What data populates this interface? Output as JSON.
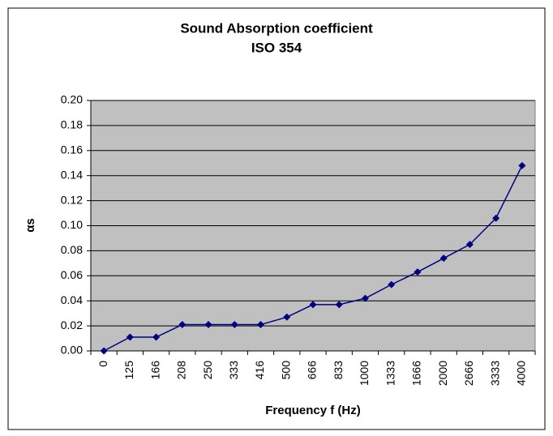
{
  "chart_data": {
    "type": "line",
    "title": "Sound Absorption coefficient",
    "subtitle": "ISO 354",
    "xlabel": "Frequency f (Hz)",
    "ylabel": "αs",
    "categories": [
      "0",
      "125",
      "166",
      "208",
      "250",
      "333",
      "416",
      "500",
      "666",
      "833",
      "1000",
      "1333",
      "1666",
      "2000",
      "2666",
      "3333",
      "4000"
    ],
    "series": [
      {
        "color": "#000080",
        "values": [
          0,
          0.011,
          0.011,
          0.021,
          0.021,
          0.021,
          0.021,
          0.027,
          0.037,
          0.037,
          0.042,
          0.053,
          0.063,
          0.074,
          0.085,
          0.106,
          0.148
        ]
      }
    ],
    "ylim": [
      0,
      0.2
    ],
    "yticks": [
      {
        "value": 0,
        "label": "0.00"
      },
      {
        "value": 0.02,
        "label": "0.02"
      },
      {
        "value": 0.04,
        "label": "0.04"
      },
      {
        "value": 0.06,
        "label": "0.06"
      },
      {
        "value": 0.08,
        "label": "0.08"
      },
      {
        "value": 0.1,
        "label": "0.10"
      },
      {
        "value": 0.12,
        "label": "0.12"
      },
      {
        "value": 0.14,
        "label": "0.14"
      },
      {
        "value": 0.16,
        "label": "0.16"
      },
      {
        "value": 0.18,
        "label": "0.18"
      },
      {
        "value": 0.2,
        "label": "0.20"
      }
    ],
    "grid": true,
    "plot_background": "#c0c0c0"
  }
}
